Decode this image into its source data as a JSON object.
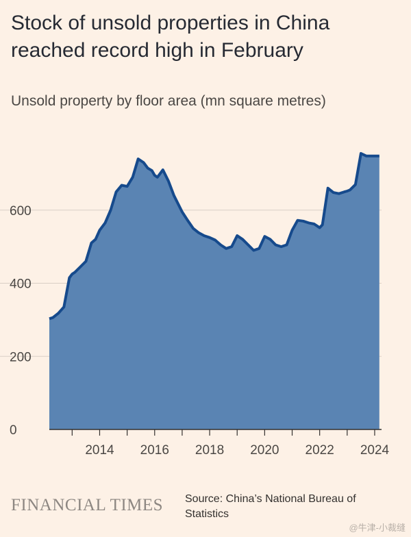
{
  "title": "Stock of unsold properties in China reached record high in February",
  "subtitle": "Unsold property by floor area (mn square metres)",
  "source": "Source: China’s National Bureau of Statistics",
  "brand": "FINANCIAL TIMES",
  "watermark": "@牛津-小裁缝",
  "colors": {
    "background": "#fdf1e6",
    "area_fill": "#5a84b3",
    "line": "#164a8c",
    "grid": "#d9cfc6",
    "axis": "#33302e"
  },
  "chart_data": {
    "type": "area",
    "title": "Stock of unsold properties in China reached record high in February",
    "subtitle": "Unsold property by floor area (mn square metres)",
    "xlabel": "",
    "ylabel": "",
    "xlim": [
      2012.17,
      2024.25
    ],
    "ylim": [
      0,
      800
    ],
    "x_ticks": [
      2014,
      2016,
      2018,
      2020,
      2022,
      2024
    ],
    "y_ticks": [
      0,
      200,
      400,
      600
    ],
    "grid": true,
    "legend": "none",
    "series": [
      {
        "x": [
          2012.17,
          2012.3,
          2012.5,
          2012.7,
          2012.9,
          2013.0,
          2013.1,
          2013.3,
          2013.5,
          2013.7,
          2013.85,
          2014.0,
          2014.2,
          2014.4,
          2014.6,
          2014.8,
          2015.0,
          2015.2,
          2015.4,
          2015.6,
          2015.75,
          2015.9,
          2016.0,
          2016.1,
          2016.3,
          2016.5,
          2016.7,
          2016.9,
          2017.0,
          2017.2,
          2017.4,
          2017.6,
          2017.8,
          2018.0,
          2018.2,
          2018.4,
          2018.6,
          2018.8,
          2019.0,
          2019.2,
          2019.4,
          2019.6,
          2019.8,
          2020.0,
          2020.2,
          2020.4,
          2020.6,
          2020.8,
          2021.0,
          2021.2,
          2021.4,
          2021.6,
          2021.8,
          2022.0,
          2022.1,
          2022.3,
          2022.5,
          2022.7,
          2022.9,
          2023.0,
          2023.1,
          2023.3,
          2023.5,
          2023.7,
          2023.9,
          2024.0,
          2024.08,
          2024.17
        ],
        "values": [
          303,
          306,
          318,
          335,
          415,
          425,
          430,
          445,
          460,
          510,
          520,
          545,
          565,
          600,
          650,
          668,
          665,
          690,
          740,
          730,
          715,
          708,
          695,
          690,
          710,
          680,
          640,
          610,
          595,
          572,
          550,
          538,
          530,
          525,
          518,
          505,
          495,
          500,
          530,
          520,
          505,
          490,
          495,
          528,
          520,
          505,
          500,
          505,
          545,
          572,
          570,
          565,
          562,
          552,
          560,
          660,
          648,
          645,
          650,
          652,
          655,
          670,
          755,
          748,
          748,
          748,
          748,
          748
        ]
      }
    ]
  }
}
